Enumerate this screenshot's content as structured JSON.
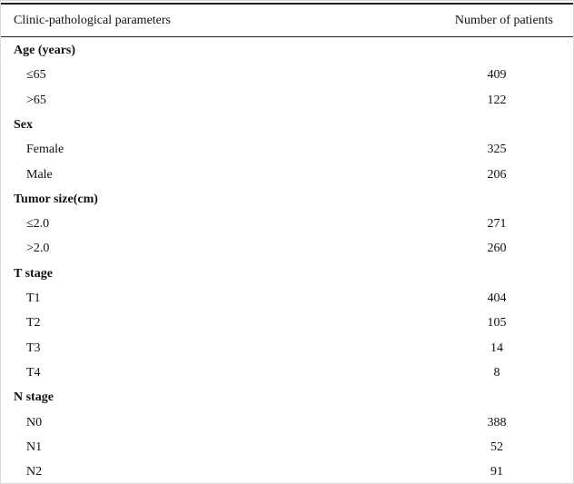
{
  "table": {
    "header": [
      "Clinic-pathological parameters",
      "Number of patients"
    ],
    "groups": [
      {
        "label": "Age (years)",
        "rows": [
          {
            "label": "≤65",
            "value": 409
          },
          {
            "label": ">65",
            "value": 122
          }
        ]
      },
      {
        "label": "Sex",
        "rows": [
          {
            "label": "Female",
            "value": 325
          },
          {
            "label": "Male",
            "value": 206
          }
        ]
      },
      {
        "label": "Tumor size(cm)",
        "rows": [
          {
            "label": "≤2.0",
            "value": 271
          },
          {
            "label": ">2.0",
            "value": 260
          }
        ]
      },
      {
        "label": "T stage",
        "rows": [
          {
            "label": "T1",
            "value": 404
          },
          {
            "label": "T2",
            "value": 105
          },
          {
            "label": "T3",
            "value": 14
          },
          {
            "label": "T4",
            "value": 8
          }
        ]
      },
      {
        "label": "N stage",
        "rows": [
          {
            "label": "N0",
            "value": 388
          },
          {
            "label": "N1",
            "value": 52
          },
          {
            "label": "N2",
            "value": 91
          }
        ]
      }
    ]
  }
}
